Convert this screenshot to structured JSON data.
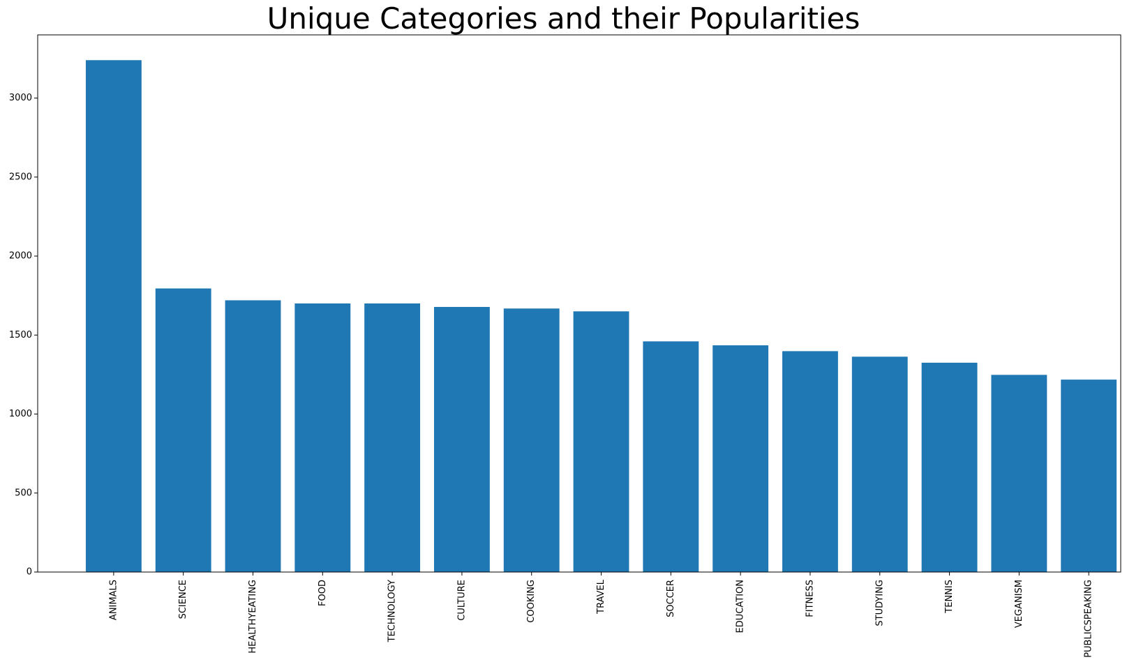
{
  "chart_data": {
    "type": "bar",
    "title": "Unique Categories and their Popularities",
    "xlabel": "",
    "ylabel": "",
    "categories": [
      "ANIMALS",
      "SCIENCE",
      "HEALTHYEATING",
      "FOOD",
      "TECHNOLOGY",
      "CULTURE",
      "COOKING",
      "TRAVEL",
      "SOCCER",
      "EDUCATION",
      "FITNESS",
      "STUDYING",
      "TENNIS",
      "VEGANISM",
      "PUBLICSPEAKING"
    ],
    "values": [
      3240,
      1795,
      1720,
      1700,
      1700,
      1678,
      1668,
      1650,
      1460,
      1435,
      1398,
      1363,
      1325,
      1248,
      1218
    ],
    "ylim": [
      0,
      3400
    ],
    "yticks": [
      0,
      500,
      1000,
      1500,
      2000,
      2500,
      3000
    ],
    "grid": false,
    "bar_color": "#1f77b4",
    "x_tick_rotation": "vertical"
  }
}
